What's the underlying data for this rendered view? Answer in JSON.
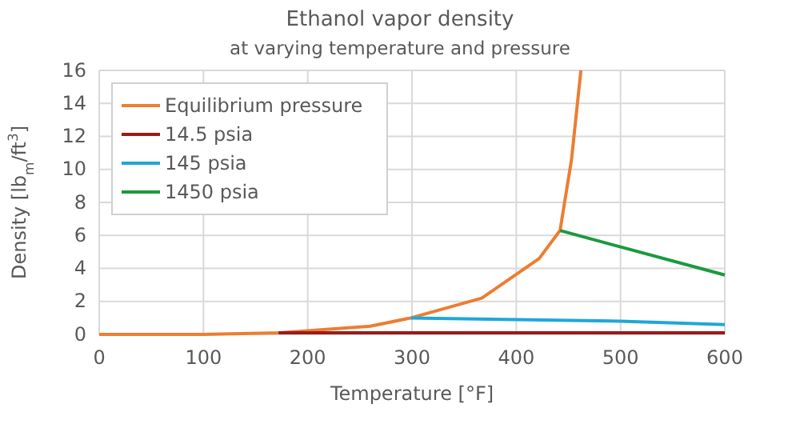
{
  "chart_data": {
    "type": "line",
    "title": "Ethanol vapor density",
    "subtitle": "at varying temperature and pressure",
    "xlabel": "Temperature [°F]",
    "ylabel": "Density [lb$_{m}$/ft$^{3}$]",
    "xlim": [
      0,
      600
    ],
    "xticks": [
      0,
      100,
      200,
      300,
      400,
      500,
      600
    ],
    "ylim": [
      0,
      16
    ],
    "yticks": [
      0,
      2,
      4,
      6,
      8,
      10,
      12,
      14,
      16
    ],
    "grid": true,
    "legend": "top left",
    "marker": "none",
    "line_style": "solid",
    "series": [
      {
        "name": "Equilibrium pressure",
        "color": "#ed7d31",
        "x": [
          0,
          100,
          173,
          260,
          299,
          367,
          422,
          442,
          453,
          462
        ],
        "values": [
          0,
          0,
          0.1,
          0.5,
          1.0,
          2.2,
          4.6,
          6.3,
          10.6,
          16
        ]
      },
      {
        "name": "14.5 psia",
        "color": "#9b1b1b",
        "x": [
          172,
          300,
          400,
          500,
          600
        ],
        "values": [
          0.1,
          0.1,
          0.1,
          0.1,
          0.1
        ]
      },
      {
        "name": "145 psia",
        "color": "#1fa7d8",
        "x": [
          299,
          400,
          500,
          600
        ],
        "values": [
          1.0,
          0.9,
          0.8,
          0.6
        ]
      },
      {
        "name": "1450 psia",
        "color": "#1a9a3e",
        "x": [
          442,
          500,
          600
        ],
        "values": [
          6.3,
          5.3,
          3.6
        ]
      }
    ]
  }
}
